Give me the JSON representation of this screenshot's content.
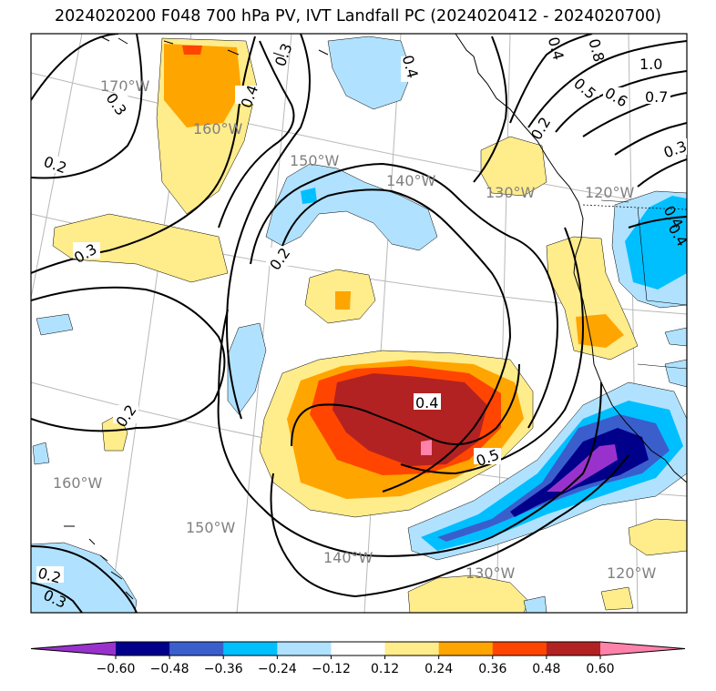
{
  "title": "2024020200 F048 700 hPa PV, IVT Landfall PC (2024020412 - 2024020700)",
  "map": {
    "longitude_labels": [
      "170°W",
      "160°W",
      "150°W",
      "140°W",
      "130°W",
      "120°W",
      "160°W",
      "150°W",
      "140°W",
      "130°W",
      "120°W"
    ],
    "contour_labels": [
      "0.3",
      "0.2",
      "0.3",
      "0.4",
      "0.3",
      "0.2",
      "0.2",
      "0.4",
      "0.5",
      "0.2",
      "0.3",
      "0.4",
      "0.2",
      "0.4",
      "0.5",
      "0.6",
      "0.7",
      "1.0",
      "0.8",
      "0.3",
      "0.4",
      "0.4"
    ]
  },
  "colorbar": {
    "ticks": [
      "−0.60",
      "−0.48",
      "−0.36",
      "−0.24",
      "−0.12",
      "0.12",
      "0.24",
      "0.36",
      "0.48",
      "0.60"
    ],
    "colors": [
      "#9932cc",
      "#00008b",
      "#3a5fcd",
      "#00bfff",
      "#b0e2ff",
      "#ffffff",
      "#ffec8b",
      "#ffa500",
      "#ff4500",
      "#b22222",
      "#ff82ab"
    ]
  }
}
